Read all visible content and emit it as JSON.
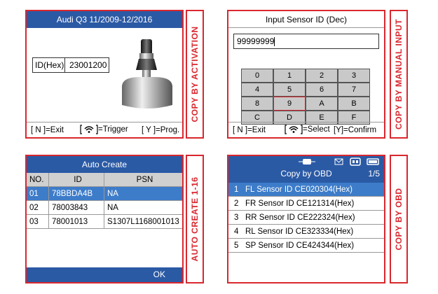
{
  "panels": [
    {
      "title": "Audi Q3 11/2009-12/2016",
      "side_label": "COPY BY ACTIVATION",
      "id_label": "ID(Hex)",
      "id_value": "23001200",
      "footer": [
        "[ N ]=Exit",
        "=Trigger",
        "[ Y ]=Prog."
      ]
    },
    {
      "title": "Input Sensor ID (Dec)",
      "side_label": "COPY BY MANUAL INPUT",
      "input": "99999999",
      "keys": [
        "0",
        "1",
        "2",
        "3",
        "4",
        "5",
        "6",
        "7",
        "8",
        "9",
        "A",
        "B",
        "C",
        "D",
        "E",
        "F"
      ],
      "footer": [
        "[ N ]=Exit",
        "=Select",
        "[Y]=Confirm"
      ]
    },
    {
      "title": "Auto Create",
      "side_label": "AUTO CREATE 1-16",
      "columns": [
        "NO.",
        "ID",
        "PSN"
      ],
      "rows": [
        [
          "01",
          "78BBDA4B",
          "NA"
        ],
        [
          "02",
          "78003843",
          "NA"
        ],
        [
          "03",
          "78001013",
          "S1307L1168001013"
        ]
      ],
      "button": "OK"
    },
    {
      "title": "Copy by OBD",
      "side_label": "COPY BY OBD",
      "page": "1/5",
      "items": [
        [
          "1",
          "FL Sensor ID CE020304(Hex)"
        ],
        [
          "2",
          "FR Sensor ID CE121314(Hex)"
        ],
        [
          "3",
          "RR Sensor ID CE222324(Hex)"
        ],
        [
          "4",
          "RL Sensor ID CE323334(Hex)"
        ],
        [
          "5",
          "SP Sensor ID CE424344(Hex)"
        ]
      ]
    }
  ]
}
